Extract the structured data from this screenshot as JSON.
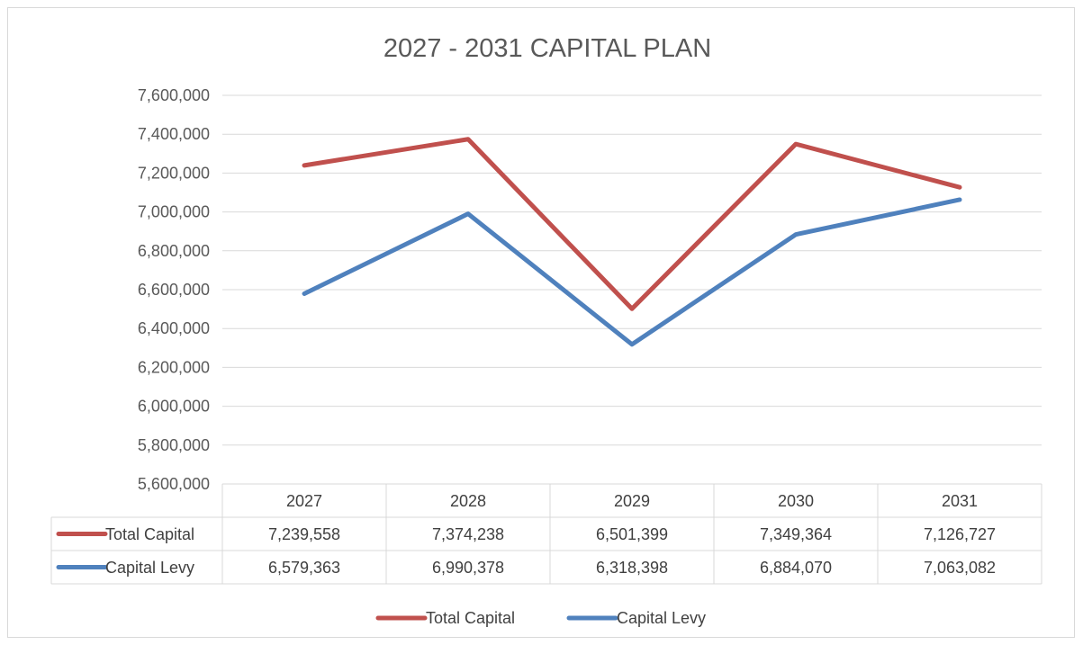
{
  "chart_data": {
    "type": "line",
    "title": "2027 - 2031 CAPITAL PLAN",
    "categories": [
      "2027",
      "2028",
      "2029",
      "2030",
      "2031"
    ],
    "ylim": [
      5600000,
      7600000
    ],
    "yticks": [
      "5,600,000",
      "5,800,000",
      "6,000,000",
      "6,200,000",
      "6,400,000",
      "6,600,000",
      "6,800,000",
      "7,000,000",
      "7,200,000",
      "7,400,000",
      "7,600,000"
    ],
    "grid": true,
    "legend_position": "bottom",
    "data_table": true,
    "series": [
      {
        "name": "Total Capital",
        "color": "#c0504d",
        "values": [
          7239558,
          7374238,
          6501399,
          7349364,
          7126727
        ],
        "labels": [
          "7,239,558",
          "7,374,238",
          "6,501,399",
          "7,349,364",
          "7,126,727"
        ]
      },
      {
        "name": "Capital Levy",
        "color": "#4f81bd",
        "values": [
          6579363,
          6990378,
          6318398,
          6884070,
          7063082
        ],
        "labels": [
          "6,579,363",
          "6,990,378",
          "6,318,398",
          "6,884,070",
          "7,063,082"
        ]
      }
    ]
  }
}
